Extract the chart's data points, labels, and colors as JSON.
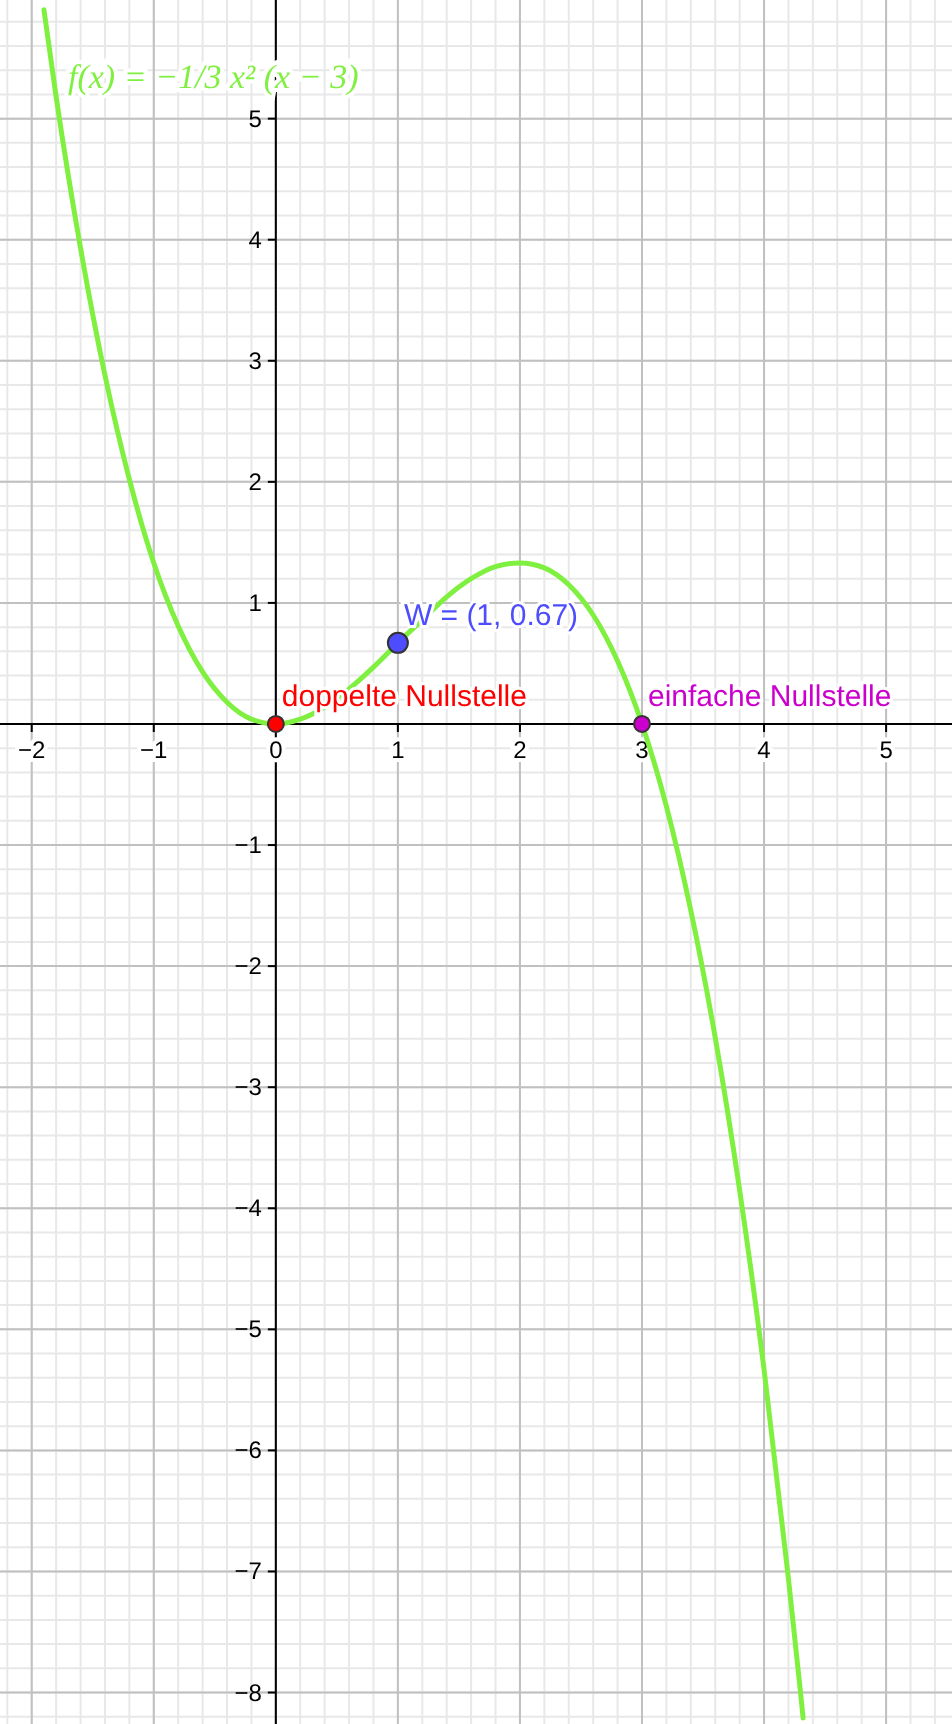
{
  "chart_data": {
    "type": "line",
    "title": "f(x) = −1/3 x² (x − 3)",
    "xlim": [
      -2.26,
      5.54
    ],
    "ylim": [
      -8.26,
      5.98
    ],
    "xticks": [
      -2,
      -1,
      0,
      1,
      2,
      3,
      4,
      5
    ],
    "yticks": [
      -8,
      -7,
      -6,
      -5,
      -4,
      -3,
      -2,
      -1,
      1,
      2,
      3,
      4,
      5
    ],
    "grid": true,
    "legend": false,
    "series": [
      {
        "color": "#80f040",
        "marker": "none",
        "x": [
          -1.9,
          -1.8,
          -1.6,
          -1.4,
          -1.2,
          -1.0,
          -0.8,
          -0.6,
          -0.4,
          -0.2,
          0,
          0.2,
          0.4,
          0.6,
          0.8,
          1.0,
          1.2,
          1.4,
          1.6,
          1.8,
          2.0,
          2.2,
          2.4,
          2.6,
          2.8,
          3.0,
          3.2,
          3.4,
          3.6,
          3.8,
          4.0,
          4.2,
          4.3,
          4.32
        ],
        "values": [
          5.9,
          5.18,
          3.93,
          2.88,
          2.02,
          1.33,
          0.81,
          0.43,
          0.18,
          0.04,
          0,
          0.04,
          0.14,
          0.29,
          0.47,
          0.67,
          0.86,
          1.05,
          1.2,
          1.3,
          1.33,
          1.29,
          1.15,
          0.9,
          0.52,
          0,
          -0.68,
          -1.54,
          -2.59,
          -3.85,
          -5.33,
          -7.06,
          -8.01,
          -8.21
        ]
      },
      {
        "type": "scatter",
        "name": "W = (1, 0.67)",
        "color": "#4d4dff",
        "marker": "circle",
        "x": [
          1
        ],
        "values": [
          0.67
        ]
      },
      {
        "type": "scatter",
        "name": "doppelte Nullstelle",
        "color": "#ff0000",
        "marker": "circle",
        "x": [
          0
        ],
        "values": [
          0
        ]
      },
      {
        "type": "scatter",
        "name": "einfache Nullstelle",
        "color": "#cc00cc",
        "marker": "circle",
        "x": [
          3
        ],
        "values": [
          0
        ]
      }
    ]
  }
}
